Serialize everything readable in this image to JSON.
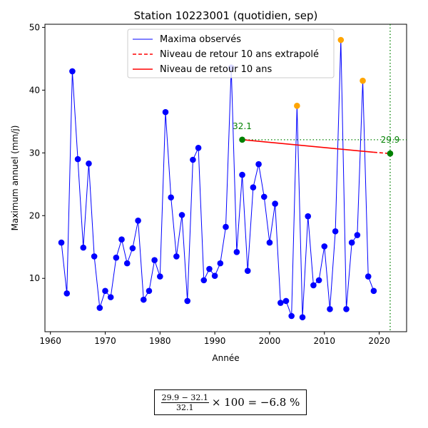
{
  "chart_data": {
    "type": "line",
    "title": "Station 10223001 (quotidien, sep)",
    "xlabel": "Année",
    "ylabel": "Maximum annuel (mm/j)",
    "xlim": [
      1959,
      2025
    ],
    "ylim": [
      1.5,
      50.5
    ],
    "xticks": [
      1960,
      1970,
      1980,
      1990,
      2000,
      2010,
      2020
    ],
    "yticks": [
      10,
      20,
      30,
      40,
      50
    ],
    "legend_position": "top-center",
    "legend": [
      "Maxima observés",
      "Niveau de retour 10 ans extrapolé",
      "Niveau de retour 10 ans"
    ],
    "series": [
      {
        "name": "Maxima observés",
        "color": "#0000ff",
        "x": [
          1962,
          1963,
          1964,
          1965,
          1966,
          1967,
          1968,
          1969,
          1970,
          1971,
          1972,
          1973,
          1974,
          1975,
          1976,
          1977,
          1978,
          1979,
          1980,
          1981,
          1982,
          1983,
          1984,
          1985,
          1986,
          1987,
          1988,
          1989,
          1990,
          1991,
          1992,
          1993,
          1994,
          1995,
          1996,
          1997,
          1998,
          1999,
          2000,
          2001,
          2002,
          2003,
          2004,
          2005,
          2006,
          2007,
          2008,
          2009,
          2010,
          2011,
          2012,
          2013,
          2014,
          2015,
          2016,
          2017,
          2018,
          2019
        ],
        "y": [
          15.7,
          7.6,
          43.0,
          29.0,
          14.9,
          28.3,
          13.5,
          5.3,
          8.0,
          7.0,
          13.3,
          16.2,
          12.4,
          14.8,
          19.2,
          6.6,
          8.0,
          12.9,
          10.3,
          36.5,
          22.9,
          13.5,
          20.1,
          6.4,
          28.9,
          30.8,
          9.7,
          11.5,
          10.4,
          12.4,
          18.2,
          43.6,
          14.2,
          26.5,
          11.2,
          24.5,
          28.2,
          23.0,
          15.7,
          21.9,
          6.1,
          6.4,
          4.0,
          37.5,
          3.8,
          19.9,
          8.9,
          9.7,
          15.1,
          5.1,
          17.5,
          48.0,
          5.1,
          15.7,
          16.9,
          41.5,
          10.3,
          8.0
        ],
        "highlighted_years": [
          2005,
          2013,
          2017
        ],
        "highlight_color": "#ffa500"
      },
      {
        "name": "Niveau de retour 10 ans",
        "color": "#ff0000",
        "style": "solid",
        "x": [
          1995,
          2019
        ],
        "y": [
          32.1,
          30.1
        ]
      },
      {
        "name": "Niveau de retour 10 ans extrapolé",
        "color": "#ff0000",
        "style": "dashed",
        "x": [
          2019,
          2022
        ],
        "y": [
          30.1,
          29.9
        ]
      }
    ],
    "annotations": [
      {
        "label": "32.1",
        "x": 1995,
        "y": 32.1,
        "color": "#008000"
      },
      {
        "label": "29.9",
        "x": 2022,
        "y": 29.9,
        "color": "#008000"
      }
    ],
    "reference_lines": {
      "color": "#008000",
      "horizontal_y": 32.1,
      "horizontal_from": 1995,
      "vertical_x": 2022
    }
  },
  "formula": {
    "numerator": "29.9 − 32.1",
    "denominator": "32.1",
    "rest": "× 100 = −6.8 %"
  }
}
